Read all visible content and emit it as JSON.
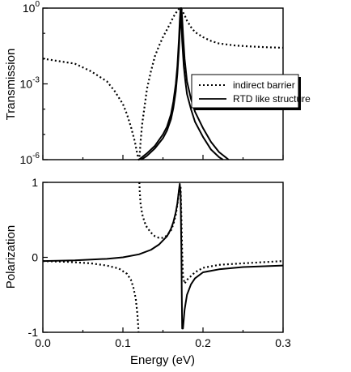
{
  "chart_data": [
    {
      "type": "line",
      "panel": "top",
      "xlim": [
        0.0,
        0.3
      ],
      "ylabel": "Transmission",
      "yscale": "log",
      "ylim": [
        -6,
        0
      ],
      "y_ticks": [
        {
          "exp": 0,
          "base": "10",
          "power": "0"
        },
        {
          "exp": -3,
          "base": "10",
          "power": "-3"
        },
        {
          "exp": -6,
          "base": "10",
          "power": "-6"
        }
      ],
      "grid": false,
      "legend_position": "right",
      "series": [
        {
          "name": "indirect barrier",
          "style": "dotted",
          "color": "#000000",
          "x": [
            0.0,
            0.02,
            0.04,
            0.06,
            0.08,
            0.09,
            0.1,
            0.105,
            0.11,
            0.115,
            0.118,
            0.12,
            0.121,
            0.122,
            0.124,
            0.127,
            0.13,
            0.135,
            0.14,
            0.145,
            0.15,
            0.155,
            0.16,
            0.163,
            0.166,
            0.168,
            0.17,
            0.171,
            0.172,
            0.173,
            0.174,
            0.176,
            0.178,
            0.18,
            0.185,
            0.19,
            0.2,
            0.21,
            0.22,
            0.24,
            0.26,
            0.28,
            0.3
          ],
          "y_log10": [
            -2.0,
            -2.1,
            -2.2,
            -2.5,
            -2.9,
            -3.3,
            -3.8,
            -4.2,
            -4.7,
            -5.3,
            -5.8,
            -6.0,
            -5.8,
            -5.3,
            -4.6,
            -3.9,
            -3.2,
            -2.5,
            -1.9,
            -1.5,
            -1.15,
            -0.85,
            -0.55,
            -0.35,
            -0.2,
            -0.1,
            -0.03,
            0.0,
            0.0,
            -0.03,
            -0.1,
            -0.22,
            -0.35,
            -0.5,
            -0.75,
            -0.95,
            -1.15,
            -1.3,
            -1.4,
            -1.48,
            -1.52,
            -1.55,
            -1.57
          ]
        },
        {
          "name": "RTD like structure",
          "style": "solid",
          "color": "#000000",
          "x": [
            0.12,
            0.13,
            0.14,
            0.15,
            0.155,
            0.16,
            0.163,
            0.166,
            0.168,
            0.17,
            0.171,
            0.172,
            0.173,
            0.174,
            0.176,
            0.178,
            0.18,
            0.185,
            0.19,
            0.2,
            0.21,
            0.22,
            0.225
          ],
          "y_log10": [
            -6.0,
            -5.75,
            -5.45,
            -5.0,
            -4.7,
            -4.2,
            -3.7,
            -3.0,
            -2.3,
            -1.2,
            -0.5,
            0.0,
            -0.6,
            -1.3,
            -2.3,
            -2.9,
            -3.4,
            -4.0,
            -4.5,
            -5.1,
            -5.6,
            -5.9,
            -6.0
          ]
        },
        {
          "name": "",
          "style": "solid",
          "color": "#000000",
          "x": [
            0.123,
            0.13,
            0.14,
            0.15,
            0.155,
            0.16,
            0.163,
            0.166,
            0.168,
            0.17,
            0.171,
            0.172,
            0.173,
            0.174,
            0.175,
            0.177,
            0.18,
            0.185,
            0.19,
            0.2,
            0.21,
            0.22,
            0.23,
            0.232
          ],
          "y_log10": [
            -6.0,
            -5.85,
            -5.55,
            -5.15,
            -4.85,
            -4.4,
            -3.95,
            -3.3,
            -2.6,
            -1.6,
            -0.9,
            -0.3,
            0.0,
            -0.4,
            -1.0,
            -2.0,
            -2.9,
            -3.6,
            -4.1,
            -4.75,
            -5.3,
            -5.7,
            -5.95,
            -6.0
          ]
        }
      ]
    },
    {
      "type": "line",
      "panel": "bottom",
      "xlabel": "Energy (eV)",
      "xlim": [
        0.0,
        0.3
      ],
      "x_ticks": [
        "0.0",
        "0.1",
        "0.2",
        "0.3"
      ],
      "ylabel": "Polarization",
      "ylim": [
        -1,
        1
      ],
      "y_ticks": [
        "1",
        "0",
        "-1"
      ],
      "grid": false,
      "series": [
        {
          "name": "indirect barrier",
          "style": "dotted",
          "color": "#000000",
          "segments": [
            {
              "x": [
                0.0,
                0.03,
                0.06,
                0.08,
                0.095,
                0.105,
                0.11,
                0.113,
                0.116,
                0.118,
                0.119,
                0.1195
              ],
              "y": [
                -0.05,
                -0.06,
                -0.08,
                -0.11,
                -0.15,
                -0.22,
                -0.3,
                -0.4,
                -0.55,
                -0.75,
                -0.9,
                -1.0
              ]
            },
            {
              "x": [
                0.1205,
                0.121,
                0.122,
                0.124,
                0.127,
                0.13,
                0.135,
                0.14,
                0.145,
                0.15,
                0.155,
                0.16,
                0.163,
                0.166,
                0.168,
                0.17,
                0.171,
                0.172,
                0.173,
                0.174,
                0.175,
                0.177,
                0.18,
                0.19,
                0.2,
                0.22,
                0.25,
                0.3
              ],
              "y": [
                1.0,
                0.88,
                0.72,
                0.58,
                0.47,
                0.4,
                0.33,
                0.28,
                0.26,
                0.26,
                0.29,
                0.36,
                0.44,
                0.57,
                0.7,
                0.88,
                0.96,
                0.95,
                0.55,
                0.05,
                -0.25,
                -0.35,
                -0.3,
                -0.2,
                -0.14,
                -0.1,
                -0.08,
                -0.05
              ]
            }
          ]
        },
        {
          "name": "RTD like structure",
          "style": "solid",
          "color": "#000000",
          "segments": [
            {
              "x": [
                0.0,
                0.04,
                0.08,
                0.1,
                0.12,
                0.135,
                0.145,
                0.155,
                0.16,
                0.163,
                0.166,
                0.168,
                0.17,
                0.171,
                0.172,
                0.173,
                0.1735,
                0.174,
                0.175,
                0.177,
                0.18,
                0.185,
                0.19,
                0.2,
                0.22,
                0.25,
                0.3
              ],
              "y": [
                -0.05,
                -0.04,
                -0.02,
                0.0,
                0.04,
                0.1,
                0.17,
                0.28,
                0.38,
                0.47,
                0.6,
                0.72,
                0.9,
                0.98,
                0.85,
                0.1,
                -0.5,
                -0.95,
                -0.95,
                -0.7,
                -0.5,
                -0.36,
                -0.28,
                -0.2,
                -0.16,
                -0.13,
                -0.11
              ]
            }
          ]
        }
      ]
    }
  ]
}
